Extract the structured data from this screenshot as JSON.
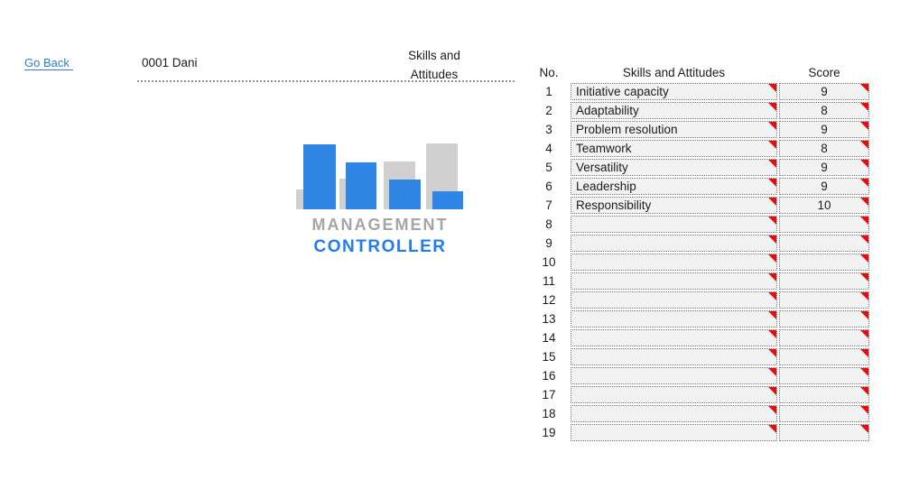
{
  "header": {
    "go_back_label": "Go Back",
    "employee_id_name": "0001 Dani",
    "section_title_line1": "Skills and",
    "section_title_line2": "Attitudes"
  },
  "logo": {
    "icon": "bar-chart-logo-icon",
    "title_top": "MANAGEMENT",
    "title_bottom": "CONTROLLER"
  },
  "table": {
    "headers": {
      "no": "No.",
      "skill": "Skills and Attitudes",
      "score": "Score"
    },
    "comment_marker_icon": "comment-indicator-icon",
    "rows": [
      {
        "no": "1",
        "skill": "Initiative capacity",
        "score": "9"
      },
      {
        "no": "2",
        "skill": "Adaptability",
        "score": "8"
      },
      {
        "no": "3",
        "skill": "Problem resolution",
        "score": "9"
      },
      {
        "no": "4",
        "skill": "Teamwork",
        "score": "8"
      },
      {
        "no": "5",
        "skill": "Versatility",
        "score": "9"
      },
      {
        "no": "6",
        "skill": "Leadership",
        "score": "9"
      },
      {
        "no": "7",
        "skill": "Responsibility",
        "score": "10"
      },
      {
        "no": "8",
        "skill": "",
        "score": ""
      },
      {
        "no": "9",
        "skill": "",
        "score": ""
      },
      {
        "no": "10",
        "skill": "",
        "score": ""
      },
      {
        "no": "11",
        "skill": "",
        "score": ""
      },
      {
        "no": "12",
        "skill": "",
        "score": ""
      },
      {
        "no": "13",
        "skill": "",
        "score": ""
      },
      {
        "no": "14",
        "skill": "",
        "score": ""
      },
      {
        "no": "15",
        "skill": "",
        "score": ""
      },
      {
        "no": "16",
        "skill": "",
        "score": ""
      },
      {
        "no": "17",
        "skill": "",
        "score": ""
      },
      {
        "no": "18",
        "skill": "",
        "score": ""
      },
      {
        "no": "19",
        "skill": "",
        "score": ""
      }
    ]
  },
  "colors": {
    "hyperlink": "#2e7cd1",
    "text": "#1b1b1b",
    "cell_fill": "#f2f2f2",
    "cell_border": "#777777",
    "marker_red": "#e80c0c",
    "bar_blue": "#2f86e4",
    "bar_gray": "#d0d0d0",
    "logo_text_gray": "#a5a5a5",
    "logo_text_blue": "#1f7cf2",
    "dotted_rule": "#9a9a9a",
    "background": "#ffffff"
  }
}
